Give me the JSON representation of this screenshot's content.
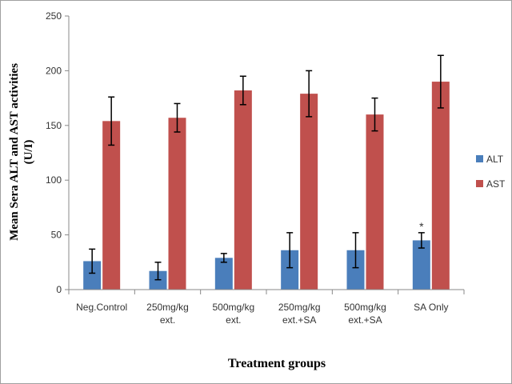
{
  "chart_data": {
    "type": "bar",
    "categories": [
      [
        "Neg.Control"
      ],
      [
        "250mg/kg",
        "ext."
      ],
      [
        "500mg/kg",
        "ext."
      ],
      [
        "250mg/kg",
        "ext.+SA"
      ],
      [
        "500mg/kg",
        "ext.+SA"
      ],
      [
        "SA Only"
      ]
    ],
    "series": [
      {
        "name": "ALT",
        "color": "#4a7ebb",
        "values": [
          26,
          17,
          29,
          36,
          36,
          45
        ],
        "errors": [
          11,
          8,
          4,
          16,
          16,
          7
        ]
      },
      {
        "name": "AST",
        "color": "#c0504d",
        "values": [
          154,
          157,
          182,
          179,
          160,
          190
        ],
        "errors": [
          22,
          13,
          13,
          21,
          15,
          24
        ]
      }
    ],
    "annotations": [
      {
        "series": "ALT",
        "category_index": 5,
        "text": "*"
      }
    ],
    "xlabel": "Treatment groups",
    "ylabel_lines": [
      "Mean Sera ALT and AST activities",
      "(U/I)"
    ],
    "ylim": [
      0,
      250
    ],
    "yticks": [
      0,
      50,
      100,
      150,
      200,
      250
    ],
    "grid": false,
    "legend_position": "right"
  }
}
